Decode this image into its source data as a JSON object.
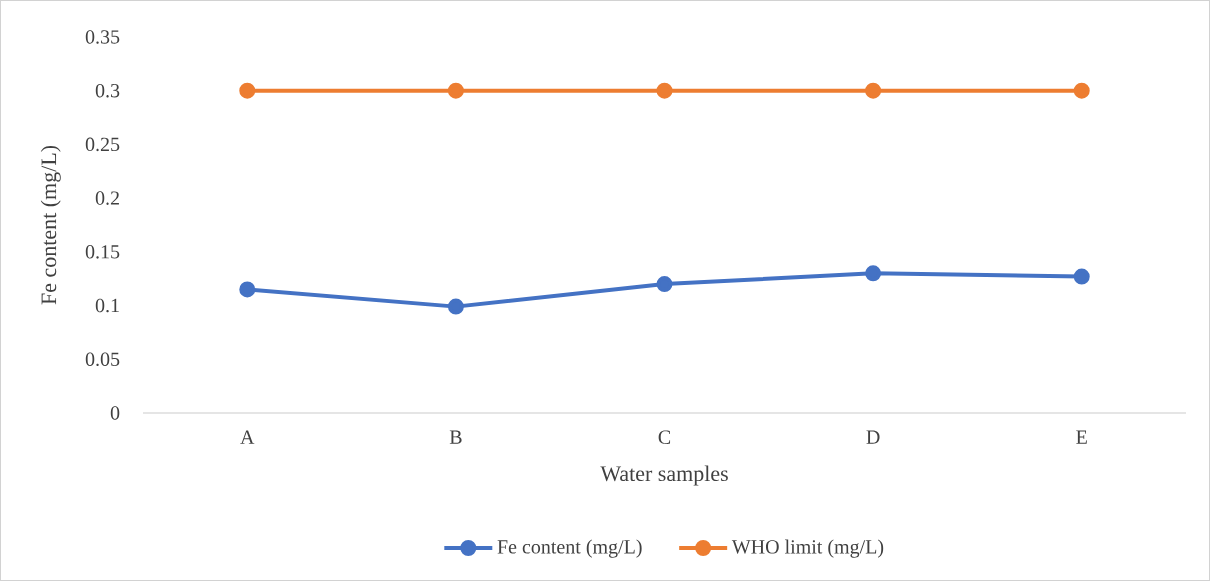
{
  "chart_data": {
    "type": "line",
    "xlabel": "Water samples",
    "ylabel": "Fe content (mg/L)",
    "categories": [
      "A",
      "B",
      "C",
      "D",
      "E"
    ],
    "series": [
      {
        "name": "Fe content (mg/L)",
        "color": "#4472c4",
        "values": [
          0.115,
          0.099,
          0.12,
          0.13,
          0.127
        ]
      },
      {
        "name": "WHO limit (mg/L)",
        "color": "#ed7d31",
        "values": [
          0.3,
          0.3,
          0.3,
          0.3,
          0.3
        ]
      }
    ],
    "ylim": [
      0,
      0.35
    ],
    "yticks": [
      0,
      0.05,
      0.1,
      0.15,
      0.2,
      0.25,
      0.3,
      0.35
    ],
    "grid": false,
    "legend": "bottom",
    "marker": "circle",
    "line_style": "solid"
  }
}
